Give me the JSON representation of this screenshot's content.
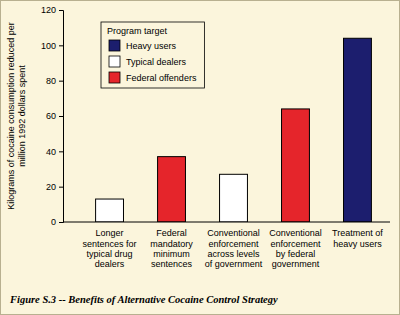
{
  "chart_data": {
    "type": "bar",
    "title": "Figure S.3 -- Benefits of Alternative Cocaine Control Strategy",
    "y_label": "Kilograms of cocaine consumption reduced per million 1992 dollars spent",
    "categories": [
      "Longer sentences for typical drug dealers",
      "Federal mandatory minimum sentences",
      "Conventional enforcement across levels of government",
      "Conventional enforcement by federal government",
      "Treatment of heavy users"
    ],
    "series": [
      {
        "name": "Heavy users",
        "color": "#1c1e6e",
        "values": [
          null,
          null,
          null,
          null,
          104
        ]
      },
      {
        "name": "Typical dealers",
        "color": "#ffffff",
        "values": [
          13,
          null,
          27,
          null,
          null
        ]
      },
      {
        "name": "Federal offenders",
        "color": "#e5252b",
        "values": [
          null,
          37,
          null,
          64,
          null
        ]
      }
    ],
    "stacked": true,
    "legend": "upper left",
    "legend_title": "Program target",
    "ylim": [
      0,
      120
    ],
    "yticks": [
      0,
      20,
      40,
      60,
      80,
      100,
      120
    ],
    "grid": false
  }
}
